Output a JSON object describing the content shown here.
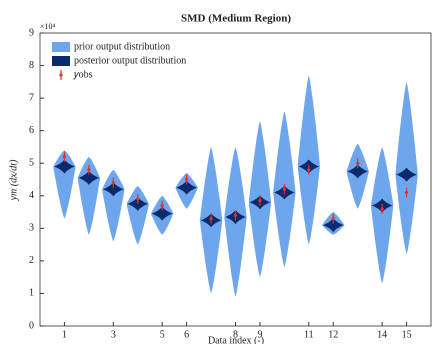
{
  "chart_data": {
    "type": "violin",
    "title": "SMD (Medium Region)",
    "xlabel": "Data index (-)",
    "ylabel": "ym (dx/dt)",
    "y_multiplier": "×10⁴",
    "x": [
      1,
      2,
      3,
      4,
      5,
      6,
      7,
      8,
      9,
      10,
      11,
      12,
      13,
      14,
      15
    ],
    "xlim": [
      0,
      16
    ],
    "xticks": [
      1,
      3,
      5,
      6,
      8,
      9,
      11,
      12,
      14,
      15
    ],
    "ylim": [
      0,
      9
    ],
    "yticks": [
      0,
      1,
      2,
      3,
      4,
      5,
      6,
      7,
      8,
      9
    ],
    "legend": "upper left",
    "series": [
      {
        "name": "prior output distribution",
        "color": "#6ea6ee",
        "min": [
          3.3,
          2.8,
          2.6,
          2.5,
          2.8,
          3.6,
          1.0,
          0.9,
          1.5,
          1.8,
          2.5,
          2.8,
          3.6,
          1.3,
          2.2
        ],
        "max": [
          5.4,
          5.2,
          4.8,
          4.3,
          4.0,
          4.7,
          5.5,
          5.5,
          6.3,
          6.6,
          7.7,
          3.5,
          5.6,
          5.5,
          7.5
        ],
        "mode": [
          4.9,
          4.55,
          4.2,
          3.75,
          3.45,
          4.25,
          3.25,
          3.35,
          3.8,
          4.1,
          4.9,
          3.1,
          4.75,
          3.7,
          4.65
        ]
      },
      {
        "name": "posterior output distribution",
        "color": "#0a2a6b",
        "values": [
          4.9,
          4.55,
          4.2,
          3.75,
          3.45,
          4.25,
          3.25,
          3.35,
          3.8,
          4.1,
          4.9,
          3.1,
          4.75,
          3.7,
          4.65
        ]
      },
      {
        "name": "𝑦obs",
        "color": "#e03030",
        "values": [
          5.2,
          4.8,
          4.4,
          3.9,
          3.7,
          4.5,
          3.3,
          3.4,
          3.85,
          4.2,
          4.8,
          3.3,
          5.0,
          3.6,
          4.1
        ]
      }
    ]
  }
}
